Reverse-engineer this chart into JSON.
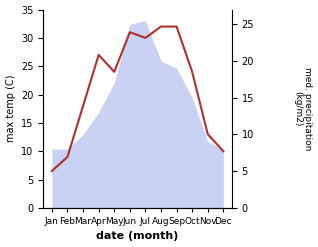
{
  "months": [
    "Jan",
    "Feb",
    "Mar",
    "Apr",
    "May",
    "Jun",
    "Jul",
    "Aug",
    "Sep",
    "Oct",
    "Nov",
    "Dec"
  ],
  "temperature": [
    6.5,
    9.0,
    18.0,
    27.0,
    24.0,
    31.0,
    30.0,
    32.0,
    32.0,
    24.0,
    13.0,
    10.0
  ],
  "precipitation": [
    8.0,
    8.0,
    10.0,
    13.0,
    17.0,
    25.0,
    25.5,
    20.0,
    19.0,
    15.0,
    9.0,
    8.0
  ],
  "temp_color": "#b03030",
  "precip_color": "#b8c4ee",
  "left_ylabel": "max temp (C)",
  "right_ylabel": "med. precipitation\n(kg/m2)",
  "xlabel": "date (month)",
  "left_ylim": [
    0,
    35
  ],
  "right_ylim": [
    0,
    27
  ],
  "left_yticks": [
    0,
    5,
    10,
    15,
    20,
    25,
    30,
    35
  ],
  "right_yticks": [
    0,
    5,
    10,
    15,
    20,
    25
  ],
  "bg_color": "#ffffff",
  "figsize": [
    3.18,
    2.47
  ],
  "dpi": 100
}
